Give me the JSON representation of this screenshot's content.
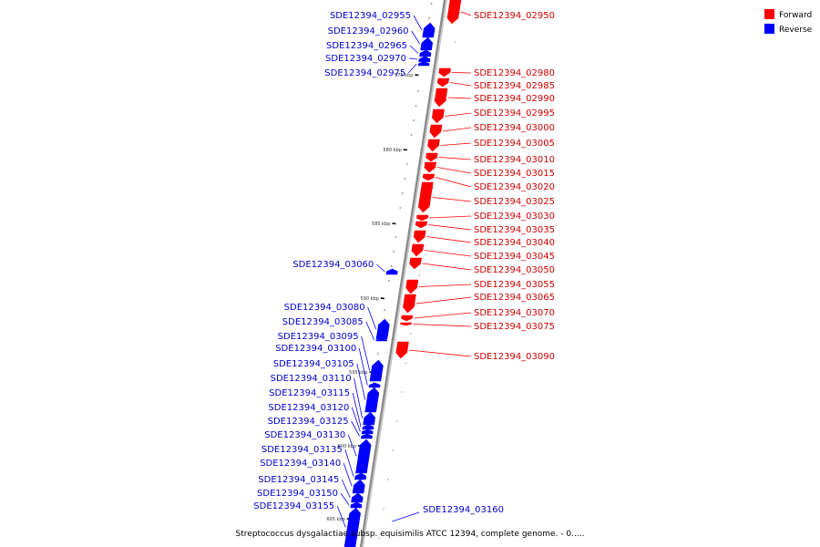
{
  "caption": "Streptococcus dysgalactiae subsp. equisimilis ATCC 12394, complete genome. - 0.....",
  "legend": [
    {
      "label": "Forward",
      "color": "#ff0000"
    },
    {
      "label": "Reverse",
      "color": "#0000ff"
    }
  ],
  "colors": {
    "forward": "#ff0000",
    "reverse": "#0000ff",
    "backbone": "#888888"
  },
  "scale_labels": [
    "575 kbp",
    "580 kbp",
    "585 kbp",
    "590 kbp",
    "595 kbp",
    "600 kbp",
    "605 kbp"
  ],
  "genes_forward": [
    "SDE12394_02950",
    "SDE12394_02980",
    "SDE12394_02985",
    "SDE12394_02990",
    "SDE12394_02995",
    "SDE12394_03000",
    "SDE12394_03005",
    "SDE12394_03010",
    "SDE12394_03015",
    "SDE12394_03020",
    "SDE12394_03025",
    "SDE12394_03030",
    "SDE12394_03035",
    "SDE12394_03040",
    "SDE12394_03045",
    "SDE12394_03050",
    "SDE12394_03055",
    "SDE12394_03065",
    "SDE12394_03070",
    "SDE12394_03075",
    "SDE12394_03090"
  ],
  "genes_reverse": [
    "SDE12394_02955",
    "SDE12394_02960",
    "SDE12394_02965",
    "SDE12394_02970",
    "SDE12394_02975",
    "SDE12394_03060",
    "SDE12394_03080",
    "SDE12394_03085",
    "SDE12394_03095",
    "SDE12394_03100",
    "SDE12394_03105",
    "SDE12394_03110",
    "SDE12394_03115",
    "SDE12394_03120",
    "SDE12394_03125",
    "SDE12394_03130",
    "SDE12394_03135",
    "SDE12394_03140",
    "SDE12394_03145",
    "SDE12394_03150",
    "SDE12394_03155",
    "SDE12394_03160"
  ]
}
